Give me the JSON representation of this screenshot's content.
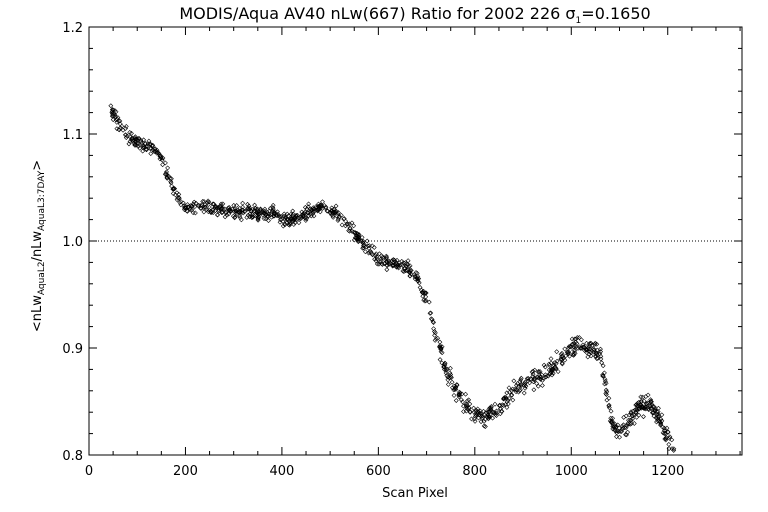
{
  "chart_data": {
    "type": "scatter",
    "title_parts": {
      "main": "MODIS/Aqua AV40 nLw(667) Ratio for 2002 226 ",
      "sigma": "σ",
      "sigma_sub": "1",
      "sigma_value": "=0.1650"
    },
    "xlabel": "Scan Pixel",
    "ylabel_parts": {
      "open": "<nLw",
      "sub1": "AquaL2",
      "slash": "/nLw",
      "sub2": "AquaL3:7DAY",
      "close": ">"
    },
    "xlim": [
      0,
      1354
    ],
    "ylim": [
      0.8,
      1.2
    ],
    "xticks": [
      0,
      200,
      400,
      600,
      800,
      1000,
      1200
    ],
    "yticks": [
      0.8,
      0.9,
      1.0,
      1.1,
      1.2
    ],
    "xtick_labels": [
      "0",
      "200",
      "400",
      "600",
      "800",
      "1000",
      "1200"
    ],
    "ytick_labels": [
      "0.8",
      "0.9",
      "1.0",
      "1.1",
      "1.2"
    ],
    "reference_line": 1.0,
    "marker": "diamond",
    "series": [
      {
        "x": [
          45,
          60,
          80,
          100,
          120,
          140,
          160,
          180,
          200,
          220,
          240,
          260,
          280,
          300,
          320,
          340,
          360,
          380,
          400,
          420,
          440,
          460,
          480,
          500,
          520,
          540,
          560,
          580,
          600,
          620,
          640,
          660,
          680,
          700,
          720,
          740,
          760,
          780,
          800,
          820,
          840,
          860,
          880,
          900,
          920,
          940,
          960,
          980,
          1000,
          1020,
          1040,
          1060,
          1070,
          1080,
          1090,
          1100,
          1120,
          1140,
          1160,
          1180,
          1200,
          1215
        ],
        "y": [
          1.125,
          1.11,
          1.098,
          1.092,
          1.09,
          1.085,
          1.065,
          1.045,
          1.03,
          1.03,
          1.032,
          1.03,
          1.028,
          1.027,
          1.028,
          1.027,
          1.026,
          1.025,
          1.02,
          1.021,
          1.022,
          1.028,
          1.032,
          1.03,
          1.022,
          1.012,
          1.002,
          0.992,
          0.983,
          0.98,
          0.978,
          0.975,
          0.965,
          0.945,
          0.91,
          0.88,
          0.862,
          0.848,
          0.838,
          0.835,
          0.84,
          0.848,
          0.86,
          0.868,
          0.872,
          0.875,
          0.882,
          0.89,
          0.9,
          0.905,
          0.9,
          0.895,
          0.87,
          0.84,
          0.825,
          0.822,
          0.832,
          0.845,
          0.85,
          0.835,
          0.815,
          0.8
        ],
        "point_count": 1200
      }
    ]
  }
}
